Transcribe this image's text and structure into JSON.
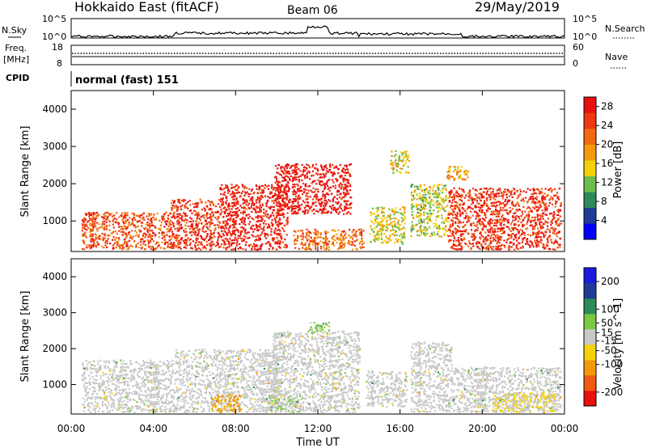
{
  "header": {
    "station": "Hokkaido East (fitACF)",
    "beam": "Beam 06",
    "date": "29/May/2019"
  },
  "noise_panel": {
    "left_label": "N.Sky",
    "right_label": "N.Search",
    "ticks": [
      "10^5",
      "10^0"
    ]
  },
  "freq_panel": {
    "left_label_1": "Freq.",
    "left_label_2": "[MHz]",
    "left_ticks": [
      "18",
      "8"
    ],
    "right_label": "Nave",
    "right_ticks": [
      "60",
      "0"
    ]
  },
  "cpid_panel": {
    "label": "CPID",
    "mode": "normal (fast) 151"
  },
  "x_axis": {
    "label": "Time UT",
    "ticks": [
      "00:00",
      "04:00",
      "08:00",
      "12:00",
      "16:00",
      "20:00",
      "00:00"
    ]
  },
  "colors": {
    "power": [
      "#0000ff",
      "#1e3c96",
      "#2e8a5a",
      "#6cbd4b",
      "#f4d20a",
      "#f39a0c",
      "#f26a10",
      "#ee3a10",
      "#e8110f"
    ],
    "velocity": [
      "#e8110f",
      "#f15a12",
      "#f39a0c",
      "#f4d20a",
      "#c8c8c8",
      "#7bc942",
      "#2e8a5a",
      "#1e3c96",
      "#1b1be0"
    ]
  },
  "chart_data": [
    {
      "type": "heatmap",
      "title": "Power [dB]",
      "xlabel": "Time UT",
      "ylabel": "Slant Range [km]",
      "x_ticks": [
        "00:00",
        "04:00",
        "08:00",
        "12:00",
        "16:00",
        "20:00",
        "00:00"
      ],
      "y_ticks": [
        1000,
        2000,
        3000,
        4000
      ],
      "xlim_hours": [
        0,
        24
      ],
      "ylim_km": [
        180,
        4500
      ],
      "colorbar": {
        "label": "Power [dB]",
        "ticks": [
          4,
          8,
          12,
          16,
          20,
          24,
          28
        ],
        "range": [
          0,
          30
        ]
      },
      "regions": [
        {
          "t0": 0.5,
          "t1": 4.8,
          "r0": 250,
          "r1": 1250,
          "value": 24
        },
        {
          "t0": 4.8,
          "t1": 7.2,
          "r0": 250,
          "r1": 1600,
          "value": 26
        },
        {
          "t0": 7.2,
          "t1": 10.5,
          "r0": 250,
          "r1": 2000,
          "value": 28
        },
        {
          "t0": 9.8,
          "t1": 13.6,
          "r0": 1200,
          "r1": 2550,
          "value": 29
        },
        {
          "t0": 10.8,
          "t1": 14.2,
          "r0": 250,
          "r1": 800,
          "value": 22
        },
        {
          "t0": 14.5,
          "t1": 16.2,
          "r0": 400,
          "r1": 1400,
          "value": 15
        },
        {
          "t0": 16.5,
          "t1": 18.3,
          "r0": 600,
          "r1": 2000,
          "value": 14
        },
        {
          "t0": 18.3,
          "t1": 23.8,
          "r0": 250,
          "r1": 1900,
          "value": 26
        },
        {
          "t0": 15.5,
          "t1": 16.4,
          "r0": 2300,
          "r1": 2900,
          "value": 16
        },
        {
          "t0": 18.2,
          "t1": 19.3,
          "r0": 2100,
          "r1": 2500,
          "value": 18
        }
      ]
    },
    {
      "type": "heatmap",
      "title": "Velocity [m s^-1]",
      "xlabel": "Time UT",
      "ylabel": "Slant Range [km]",
      "x_ticks": [
        "00:00",
        "04:00",
        "08:00",
        "12:00",
        "16:00",
        "20:00",
        "00:00"
      ],
      "y_ticks": [
        1000,
        2000,
        3000,
        4000
      ],
      "xlim_hours": [
        0,
        24
      ],
      "ylim_km": [
        180,
        4500
      ],
      "colorbar": {
        "label": "Velocity [m s^-1]",
        "ticks": [
          -200,
          -100,
          -50,
          -15,
          15,
          50,
          100,
          200
        ],
        "range": [
          -250,
          250
        ]
      },
      "regions": [
        {
          "t0": 0.5,
          "t1": 5.0,
          "r0": 250,
          "r1": 1700,
          "value": 0
        },
        {
          "t0": 5.0,
          "t1": 10.0,
          "r0": 250,
          "r1": 2000,
          "value": 0
        },
        {
          "t0": 6.8,
          "t1": 8.2,
          "r0": 250,
          "r1": 750,
          "value": -90
        },
        {
          "t0": 9.8,
          "t1": 14.0,
          "r0": 250,
          "r1": 2500,
          "value": 0
        },
        {
          "t0": 11.5,
          "t1": 12.6,
          "r0": 2450,
          "r1": 2750,
          "value": 35
        },
        {
          "t0": 9.5,
          "t1": 11.2,
          "r0": 250,
          "r1": 700,
          "value": 25
        },
        {
          "t0": 14.3,
          "t1": 16.3,
          "r0": 400,
          "r1": 1400,
          "value": 0
        },
        {
          "t0": 16.5,
          "t1": 18.5,
          "r0": 250,
          "r1": 2200,
          "value": 0
        },
        {
          "t0": 18.5,
          "t1": 23.8,
          "r0": 250,
          "r1": 1500,
          "value": 0
        },
        {
          "t0": 20.5,
          "t1": 23.5,
          "r0": 250,
          "r1": 800,
          "value": -30
        }
      ]
    }
  ]
}
